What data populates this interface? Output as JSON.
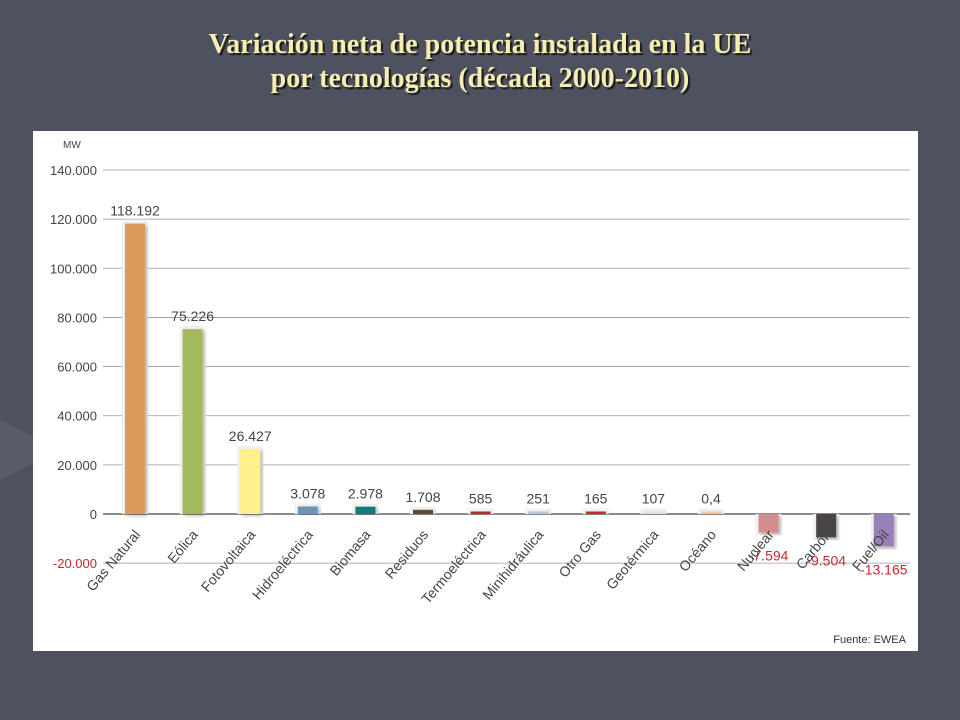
{
  "title_lines": [
    "Variación neta de potencia instalada en la UE",
    "por tecnologías (década 2000-2010)"
  ],
  "chart_data": {
    "type": "bar",
    "ylabel": "MW",
    "ylim": [
      -20000,
      140000
    ],
    "yticks": [
      140000,
      120000,
      100000,
      80000,
      60000,
      40000,
      20000,
      0,
      -20000
    ],
    "ytick_labels": [
      "140.000",
      "120.000",
      "100.000",
      "80.000",
      "60.000",
      "40.000",
      "20.000",
      "0",
      "-20.000"
    ],
    "grid": true,
    "categories": [
      "Gas Natural",
      "Eólica",
      "Fotovoltaica",
      "Hidroeléctrica",
      "Biomasa",
      "Residuos",
      "Termoeléctrica",
      "Minihidráulica",
      "Otro Gas",
      "Geotérmica",
      "Océano",
      "Nuclear",
      "Carbón",
      "Fuel/Oil"
    ],
    "values": [
      118192,
      75226,
      26427,
      3078,
      2978,
      1708,
      585,
      251,
      165,
      107,
      0.4,
      -7594,
      -9504,
      -13165
    ],
    "value_labels": [
      "118.192",
      "75.226",
      "26.427",
      "3.078",
      "2.978",
      "1.708",
      "585",
      "251",
      "165",
      "107",
      "0,4",
      "-7.594",
      "-9.504",
      "-13.165"
    ],
    "colors": [
      "#dc9a5c",
      "#a3ba5c",
      "#fff08c",
      "#6e93b8",
      "#0e7e78",
      "#5c4a3a",
      "#b82a30",
      "#b8c8d8",
      "#c82830",
      "#e0e0e0",
      "#f0c8a8",
      "#d48c8c",
      "#4a4444",
      "#9a80b8"
    ],
    "negative_label_color": "#c82830",
    "annotation": "Fuente: EWEA"
  }
}
